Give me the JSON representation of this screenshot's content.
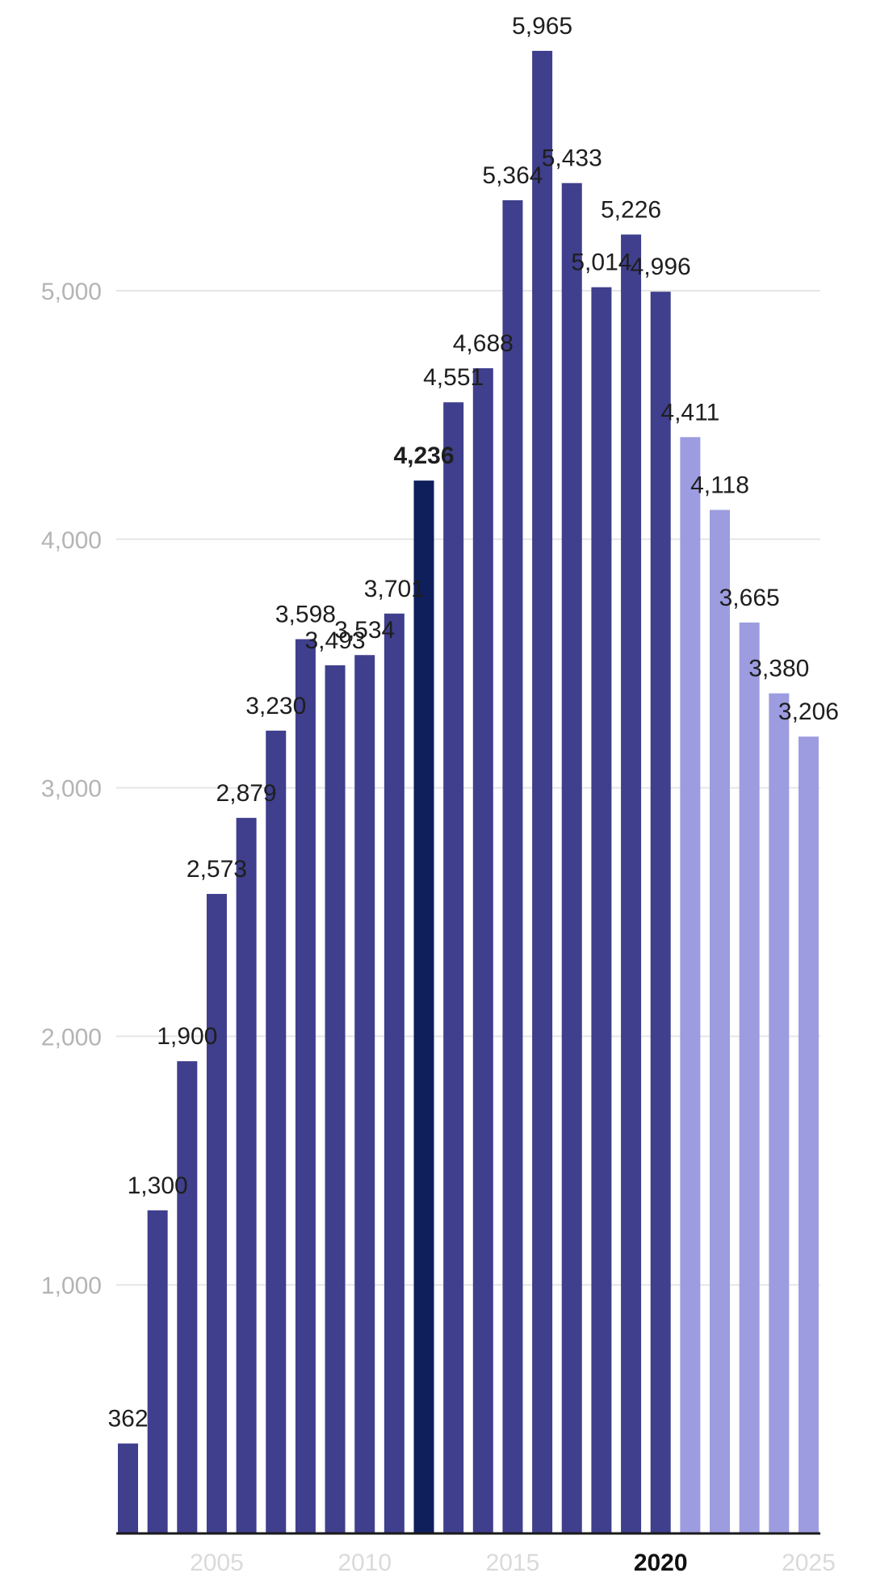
{
  "chart_data": {
    "type": "bar",
    "categories": [
      "2002",
      "2003",
      "2004",
      "2005",
      "2006",
      "2007",
      "2008",
      "2009",
      "2010",
      "2011",
      "2012",
      "2013",
      "2014",
      "2015",
      "2016",
      "2017",
      "2018",
      "2019",
      "2020",
      "2021",
      "2022",
      "2023",
      "2024",
      "2025"
    ],
    "values": [
      362,
      1300,
      1900,
      2573,
      2879,
      3230,
      3598,
      3493,
      3534,
      3701,
      4236,
      4551,
      4688,
      5364,
      5965,
      5433,
      5014,
      5226,
      4996,
      4411,
      4118,
      3665,
      3380,
      3206
    ],
    "value_labels": [
      "362",
      "1,300",
      "1,900",
      "2,573",
      "2,879",
      "3,230",
      "3,598",
      "3,493",
      "3,534",
      "3,701",
      "4,236",
      "4,551",
      "4,688",
      "5,364",
      "5,965",
      "5,433",
      "5,014",
      "5,226",
      "4,996",
      "4,411",
      "4,118",
      "3,665",
      "3,380",
      "3,206"
    ],
    "highlight_category": "2012",
    "forecast_from": "2021",
    "ylim": [
      0,
      6000
    ],
    "yticks": [
      1000,
      2000,
      3000,
      4000,
      5000
    ],
    "ytick_labels": [
      "1,000",
      "2,000",
      "3,000",
      "4,000",
      "5,000"
    ],
    "xticks": [
      "2005",
      "2010",
      "2015",
      "2020",
      "2025"
    ],
    "xtick_bold": "2020",
    "grid": true,
    "title": "",
    "xlabel": "",
    "ylabel": "",
    "colors": {
      "bar": "#3f3f8d",
      "highlight": "#0f1f5c",
      "forecast": "#9d9ce0",
      "grid": "#e6e6e6",
      "axis": "#1a1a1a"
    }
  }
}
